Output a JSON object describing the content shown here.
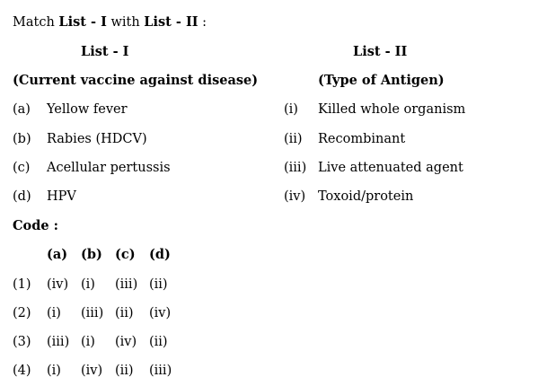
{
  "question": {
    "intro": {
      "pre": "Match ",
      "list1": "List - I",
      "mid": " with ",
      "list2": "List - II",
      "post": " :"
    }
  },
  "list1": {
    "heading": "List - I",
    "subheading": "(Current vaccine against disease)",
    "items": [
      {
        "key": "(a)",
        "text": "Yellow fever"
      },
      {
        "key": "(b)",
        "text": "Rabies (HDCV)"
      },
      {
        "key": "(c)",
        "text": "Acellular pertussis"
      },
      {
        "key": "(d)",
        "text": "HPV"
      }
    ]
  },
  "list2": {
    "heading": "List - II",
    "subheading": "(Type of Antigen)",
    "items": [
      {
        "key": "(i)",
        "text": "Killed whole organism"
      },
      {
        "key": "(ii)",
        "text": "Recombinant"
      },
      {
        "key": "(iii)",
        "text": "Live attenuated agent"
      },
      {
        "key": "(iv)",
        "text": "Toxoid/protein"
      }
    ]
  },
  "code": {
    "label": "Code :",
    "headers": [
      "(a)",
      "(b)",
      "(c)",
      "(d)"
    ],
    "options": [
      {
        "num": "(1)",
        "values": [
          "(iv)",
          "(i)",
          "(iii)",
          "(ii)"
        ]
      },
      {
        "num": "(2)",
        "values": [
          "(i)",
          "(iii)",
          "(ii)",
          "(iv)"
        ]
      },
      {
        "num": "(3)",
        "values": [
          "(iii)",
          "(i)",
          "(iv)",
          "(ii)"
        ]
      },
      {
        "num": "(4)",
        "values": [
          "(i)",
          "(iv)",
          "(ii)",
          "(iii)"
        ]
      }
    ]
  }
}
